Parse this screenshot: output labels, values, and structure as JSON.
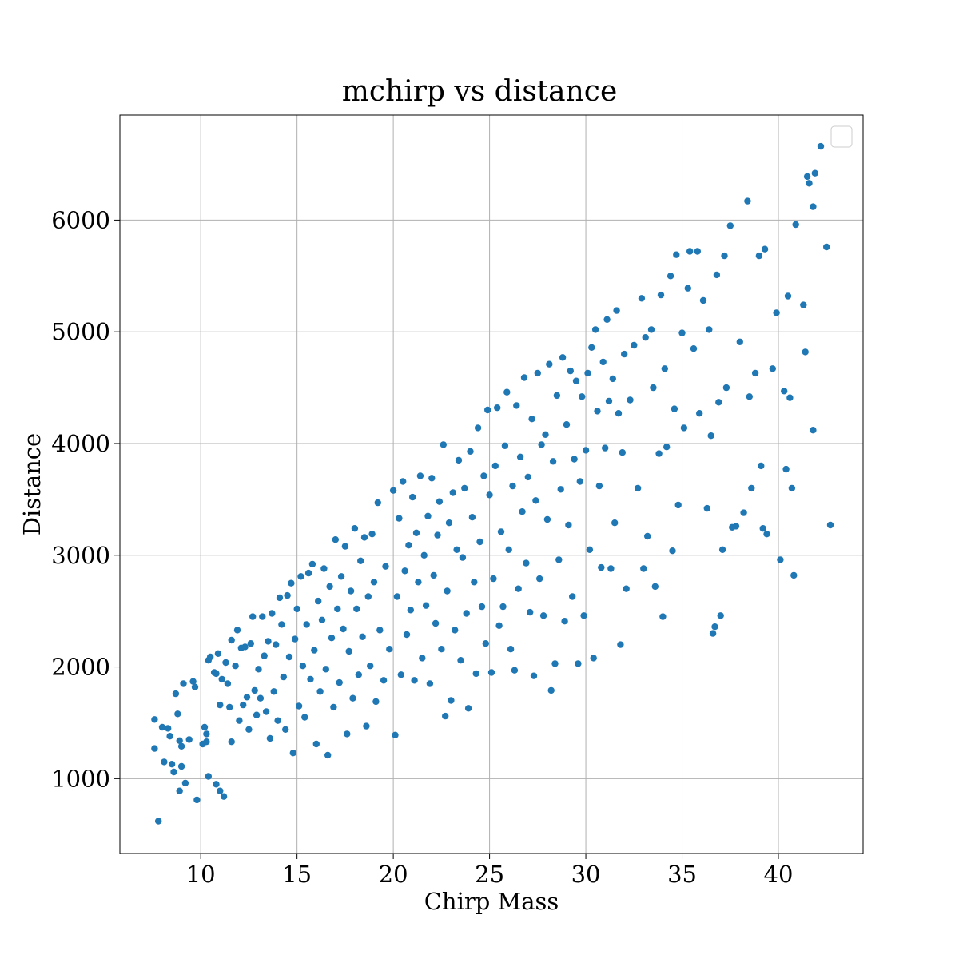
{
  "chart_data": {
    "type": "scatter",
    "title": "mchirp vs distance",
    "xlabel": "Chirp Mass",
    "ylabel": "Distance",
    "xlim": [
      5.8,
      44.4
    ],
    "ylim": [
      330,
      6940
    ],
    "xticks": [
      10,
      15,
      20,
      25,
      30,
      35,
      40
    ],
    "yticks": [
      1000,
      2000,
      3000,
      4000,
      5000,
      6000
    ],
    "grid": true,
    "legend": "top-right",
    "series": [
      {
        "color": "#1f77b4",
        "points": [
          [
            7.8,
            620
          ],
          [
            7.6,
            1270
          ],
          [
            7.6,
            1530
          ],
          [
            8.0,
            1460
          ],
          [
            8.1,
            1150
          ],
          [
            8.3,
            1450
          ],
          [
            8.4,
            1380
          ],
          [
            8.6,
            1060
          ],
          [
            8.5,
            1130
          ],
          [
            8.7,
            1760
          ],
          [
            8.8,
            1580
          ],
          [
            8.9,
            1340
          ],
          [
            9.0,
            1290
          ],
          [
            9.0,
            1110
          ],
          [
            8.9,
            890
          ],
          [
            9.1,
            1850
          ],
          [
            9.2,
            960
          ],
          [
            9.4,
            1350
          ],
          [
            9.6,
            1870
          ],
          [
            9.7,
            1820
          ],
          [
            9.8,
            810
          ],
          [
            10.1,
            1310
          ],
          [
            10.2,
            1460
          ],
          [
            10.3,
            1400
          ],
          [
            10.3,
            1330
          ],
          [
            10.4,
            1020
          ],
          [
            10.4,
            2060
          ],
          [
            10.5,
            2090
          ],
          [
            10.7,
            1950
          ],
          [
            10.8,
            1940
          ],
          [
            10.8,
            950
          ],
          [
            10.9,
            2120
          ],
          [
            11.0,
            1660
          ],
          [
            11.0,
            890
          ],
          [
            11.1,
            1890
          ],
          [
            11.2,
            840
          ],
          [
            11.3,
            2040
          ],
          [
            11.4,
            1850
          ],
          [
            11.5,
            1640
          ],
          [
            11.6,
            2240
          ],
          [
            11.6,
            1330
          ],
          [
            11.8,
            2010
          ],
          [
            11.9,
            2330
          ],
          [
            12.0,
            1520
          ],
          [
            12.1,
            2170
          ],
          [
            12.2,
            1660
          ],
          [
            12.3,
            2180
          ],
          [
            12.4,
            1730
          ],
          [
            12.5,
            1440
          ],
          [
            12.6,
            2210
          ],
          [
            12.7,
            2450
          ],
          [
            12.8,
            1790
          ],
          [
            12.9,
            1570
          ],
          [
            13.0,
            1980
          ],
          [
            13.1,
            1720
          ],
          [
            13.2,
            2450
          ],
          [
            13.3,
            2100
          ],
          [
            13.4,
            1600
          ],
          [
            13.5,
            2230
          ],
          [
            13.6,
            1360
          ],
          [
            13.7,
            2480
          ],
          [
            13.8,
            1780
          ],
          [
            13.9,
            2200
          ],
          [
            14.0,
            1520
          ],
          [
            14.1,
            2620
          ],
          [
            14.2,
            2380
          ],
          [
            14.3,
            1910
          ],
          [
            14.4,
            1440
          ],
          [
            14.5,
            2640
          ],
          [
            14.6,
            2090
          ],
          [
            14.7,
            2750
          ],
          [
            14.8,
            1230
          ],
          [
            14.9,
            2250
          ],
          [
            15.0,
            2520
          ],
          [
            15.1,
            1650
          ],
          [
            15.2,
            2810
          ],
          [
            15.3,
            2010
          ],
          [
            15.4,
            1550
          ],
          [
            15.5,
            2380
          ],
          [
            15.6,
            2840
          ],
          [
            15.7,
            1890
          ],
          [
            15.8,
            2920
          ],
          [
            15.9,
            2150
          ],
          [
            16.0,
            1310
          ],
          [
            16.1,
            2590
          ],
          [
            16.2,
            1780
          ],
          [
            16.3,
            2420
          ],
          [
            16.4,
            2880
          ],
          [
            16.5,
            1980
          ],
          [
            16.6,
            1210
          ],
          [
            16.7,
            2720
          ],
          [
            16.8,
            2260
          ],
          [
            16.9,
            1640
          ],
          [
            17.0,
            3140
          ],
          [
            17.1,
            2520
          ],
          [
            17.2,
            1860
          ],
          [
            17.3,
            2810
          ],
          [
            17.4,
            2340
          ],
          [
            17.5,
            3080
          ],
          [
            17.6,
            1400
          ],
          [
            17.7,
            2140
          ],
          [
            17.8,
            2680
          ],
          [
            17.9,
            1720
          ],
          [
            18.0,
            3240
          ],
          [
            18.1,
            2520
          ],
          [
            18.2,
            1930
          ],
          [
            18.3,
            2950
          ],
          [
            18.4,
            2270
          ],
          [
            18.5,
            3160
          ],
          [
            18.6,
            1470
          ],
          [
            18.7,
            2630
          ],
          [
            18.8,
            2010
          ],
          [
            18.9,
            3190
          ],
          [
            19.0,
            2760
          ],
          [
            19.1,
            1690
          ],
          [
            19.2,
            3470
          ],
          [
            19.3,
            2330
          ],
          [
            19.5,
            1880
          ],
          [
            19.6,
            2900
          ],
          [
            19.8,
            2160
          ],
          [
            20.0,
            3580
          ],
          [
            20.1,
            1390
          ],
          [
            20.2,
            2630
          ],
          [
            20.3,
            3330
          ],
          [
            20.4,
            1930
          ],
          [
            20.5,
            3660
          ],
          [
            20.6,
            2860
          ],
          [
            20.7,
            2290
          ],
          [
            20.8,
            3090
          ],
          [
            20.9,
            2510
          ],
          [
            21.0,
            3520
          ],
          [
            21.1,
            1880
          ],
          [
            21.2,
            3200
          ],
          [
            21.3,
            2760
          ],
          [
            21.4,
            3710
          ],
          [
            21.5,
            2080
          ],
          [
            21.6,
            3000
          ],
          [
            21.7,
            2550
          ],
          [
            21.8,
            3350
          ],
          [
            21.9,
            1850
          ],
          [
            22.0,
            3690
          ],
          [
            22.1,
            2820
          ],
          [
            22.2,
            2390
          ],
          [
            22.3,
            3180
          ],
          [
            22.4,
            3480
          ],
          [
            22.5,
            2160
          ],
          [
            22.6,
            3990
          ],
          [
            22.7,
            1560
          ],
          [
            22.8,
            2680
          ],
          [
            22.9,
            3290
          ],
          [
            23.0,
            1700
          ],
          [
            23.1,
            3560
          ],
          [
            23.2,
            2330
          ],
          [
            23.3,
            3050
          ],
          [
            23.4,
            3850
          ],
          [
            23.5,
            2060
          ],
          [
            23.6,
            2980
          ],
          [
            23.7,
            3600
          ],
          [
            23.8,
            2480
          ],
          [
            23.9,
            1630
          ],
          [
            24.0,
            3930
          ],
          [
            24.1,
            3340
          ],
          [
            24.2,
            2760
          ],
          [
            24.3,
            1940
          ],
          [
            24.4,
            4140
          ],
          [
            24.5,
            3120
          ],
          [
            24.6,
            2540
          ],
          [
            24.7,
            3710
          ],
          [
            24.8,
            2210
          ],
          [
            24.9,
            4300
          ],
          [
            25.0,
            3540
          ],
          [
            25.1,
            1950
          ],
          [
            25.2,
            2790
          ],
          [
            25.3,
            3800
          ],
          [
            25.4,
            4320
          ],
          [
            25.5,
            2370
          ],
          [
            25.6,
            3210
          ],
          [
            25.7,
            2540
          ],
          [
            25.8,
            3980
          ],
          [
            25.9,
            4460
          ],
          [
            26.0,
            3050
          ],
          [
            26.1,
            2160
          ],
          [
            26.2,
            3620
          ],
          [
            26.3,
            1970
          ],
          [
            26.4,
            4340
          ],
          [
            26.5,
            2700
          ],
          [
            26.6,
            3880
          ],
          [
            26.7,
            3390
          ],
          [
            26.8,
            4590
          ],
          [
            26.9,
            2930
          ],
          [
            27.0,
            3700
          ],
          [
            27.1,
            2490
          ],
          [
            27.2,
            4220
          ],
          [
            27.3,
            1920
          ],
          [
            27.4,
            3490
          ],
          [
            27.5,
            4630
          ],
          [
            27.6,
            2790
          ],
          [
            27.7,
            3990
          ],
          [
            27.8,
            2460
          ],
          [
            27.9,
            4080
          ],
          [
            28.0,
            3320
          ],
          [
            28.1,
            4710
          ],
          [
            28.2,
            1790
          ],
          [
            28.3,
            3840
          ],
          [
            28.4,
            2030
          ],
          [
            28.5,
            4430
          ],
          [
            28.6,
            2960
          ],
          [
            28.7,
            3590
          ],
          [
            28.8,
            4770
          ],
          [
            28.9,
            2410
          ],
          [
            29.0,
            4170
          ],
          [
            29.1,
            3270
          ],
          [
            29.2,
            4650
          ],
          [
            29.3,
            2630
          ],
          [
            29.4,
            3860
          ],
          [
            29.5,
            4560
          ],
          [
            29.6,
            2030
          ],
          [
            29.7,
            3660
          ],
          [
            29.8,
            4420
          ],
          [
            29.9,
            2460
          ],
          [
            30.0,
            3940
          ],
          [
            30.1,
            4630
          ],
          [
            30.2,
            3050
          ],
          [
            30.3,
            4860
          ],
          [
            30.4,
            2080
          ],
          [
            30.5,
            5020
          ],
          [
            30.6,
            4290
          ],
          [
            30.7,
            3620
          ],
          [
            30.8,
            2890
          ],
          [
            30.9,
            4730
          ],
          [
            31.0,
            3960
          ],
          [
            31.1,
            5110
          ],
          [
            31.2,
            4380
          ],
          [
            31.3,
            2880
          ],
          [
            31.4,
            4580
          ],
          [
            31.5,
            3290
          ],
          [
            31.6,
            5190
          ],
          [
            31.7,
            4270
          ],
          [
            31.8,
            2200
          ],
          [
            31.9,
            3920
          ],
          [
            32.0,
            4800
          ],
          [
            32.1,
            2700
          ],
          [
            32.3,
            4390
          ],
          [
            32.5,
            4880
          ],
          [
            32.7,
            3600
          ],
          [
            32.9,
            5300
          ],
          [
            33.0,
            2880
          ],
          [
            33.1,
            4950
          ],
          [
            33.2,
            3170
          ],
          [
            33.4,
            5020
          ],
          [
            33.5,
            4500
          ],
          [
            33.6,
            2720
          ],
          [
            33.8,
            3910
          ],
          [
            33.9,
            5330
          ],
          [
            34.0,
            2450
          ],
          [
            34.1,
            4670
          ],
          [
            34.2,
            3970
          ],
          [
            34.4,
            5500
          ],
          [
            34.5,
            3040
          ],
          [
            34.6,
            4310
          ],
          [
            34.7,
            5690
          ],
          [
            34.8,
            3450
          ],
          [
            35.0,
            4990
          ],
          [
            35.1,
            4140
          ],
          [
            35.3,
            5390
          ],
          [
            35.4,
            5720
          ],
          [
            35.6,
            4850
          ],
          [
            35.8,
            5720
          ],
          [
            35.9,
            4270
          ],
          [
            36.1,
            5280
          ],
          [
            36.3,
            3420
          ],
          [
            36.4,
            5020
          ],
          [
            36.5,
            4070
          ],
          [
            36.6,
            2300
          ],
          [
            36.7,
            2360
          ],
          [
            36.8,
            5510
          ],
          [
            36.9,
            4370
          ],
          [
            37.0,
            2460
          ],
          [
            37.1,
            3050
          ],
          [
            37.2,
            5680
          ],
          [
            37.3,
            4500
          ],
          [
            37.5,
            5950
          ],
          [
            37.6,
            3250
          ],
          [
            37.8,
            3260
          ],
          [
            38.0,
            4910
          ],
          [
            38.2,
            3380
          ],
          [
            38.4,
            6170
          ],
          [
            38.5,
            4420
          ],
          [
            38.6,
            3600
          ],
          [
            38.8,
            4630
          ],
          [
            39.0,
            5680
          ],
          [
            39.1,
            3800
          ],
          [
            39.2,
            3240
          ],
          [
            39.3,
            5740
          ],
          [
            39.4,
            3190
          ],
          [
            39.7,
            4670
          ],
          [
            39.9,
            5170
          ],
          [
            40.1,
            2960
          ],
          [
            40.3,
            4470
          ],
          [
            40.4,
            3770
          ],
          [
            40.5,
            5320
          ],
          [
            40.6,
            4410
          ],
          [
            40.7,
            3600
          ],
          [
            40.8,
            2820
          ],
          [
            40.9,
            5960
          ],
          [
            41.3,
            5240
          ],
          [
            41.4,
            4820
          ],
          [
            41.5,
            6390
          ],
          [
            41.6,
            6330
          ],
          [
            41.8,
            6120
          ],
          [
            41.9,
            6420
          ],
          [
            41.8,
            4120
          ],
          [
            42.2,
            6660
          ],
          [
            42.5,
            5760
          ],
          [
            42.7,
            3270
          ]
        ]
      }
    ]
  }
}
